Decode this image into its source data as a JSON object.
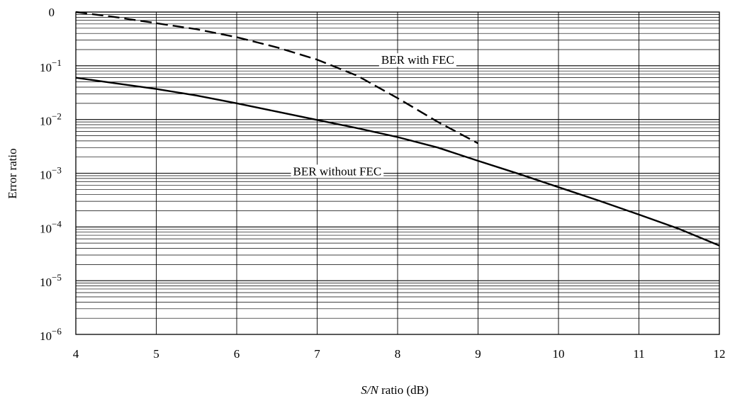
{
  "chart_data": {
    "type": "line",
    "xlabel_italic": "S/N",
    "xlabel_rest": " ratio (dB)",
    "ylabel": "Error ratio",
    "xlim": [
      4,
      12
    ],
    "ylim": [
      1e-06,
      1
    ],
    "y_scale": "log",
    "grid": true,
    "x_ticks": [
      "4",
      "5",
      "6",
      "7",
      "8",
      "9",
      "10",
      "11",
      "12"
    ],
    "y_ticks": [
      {
        "value": 1,
        "base": "0",
        "exp": ""
      },
      {
        "value": 0.1,
        "base": "10",
        "exp": "−1"
      },
      {
        "value": 0.01,
        "base": "10",
        "exp": "−2"
      },
      {
        "value": 0.001,
        "base": "10",
        "exp": "−3"
      },
      {
        "value": 0.0001,
        "base": "10",
        "exp": "−4"
      },
      {
        "value": 1e-05,
        "base": "10",
        "exp": "−5"
      },
      {
        "value": 1e-06,
        "base": "10",
        "exp": "−6"
      }
    ],
    "series": [
      {
        "name": "BER without FEC",
        "style": "solid",
        "color": "#000000",
        "x": [
          4.0,
          4.5,
          5.0,
          5.5,
          6.0,
          6.5,
          7.0,
          7.5,
          8.0,
          8.5,
          9.0,
          9.5,
          10.0,
          10.5,
          11.0,
          11.5,
          12.0
        ],
        "y": [
          0.06,
          0.047,
          0.037,
          0.028,
          0.02,
          0.014,
          0.0098,
          0.0069,
          0.0047,
          0.003,
          0.0017,
          0.00098,
          0.00055,
          0.00031,
          0.00017,
          9.2e-05,
          4.5e-05
        ]
      },
      {
        "name": "BER with FEC",
        "style": "dashed",
        "color": "#000000",
        "x": [
          4.0,
          4.5,
          5.0,
          5.5,
          6.0,
          6.5,
          7.0,
          7.5,
          8.0,
          8.5,
          9.0
        ],
        "y": [
          1.0,
          0.8,
          0.62,
          0.48,
          0.34,
          0.22,
          0.13,
          0.065,
          0.025,
          0.009,
          0.0036
        ]
      }
    ],
    "annotations": [
      {
        "text": "BER with FEC",
        "x": 8.25,
        "y": 0.13
      },
      {
        "text": "BER without FEC",
        "x": 7.25,
        "y": 0.0011
      }
    ]
  }
}
